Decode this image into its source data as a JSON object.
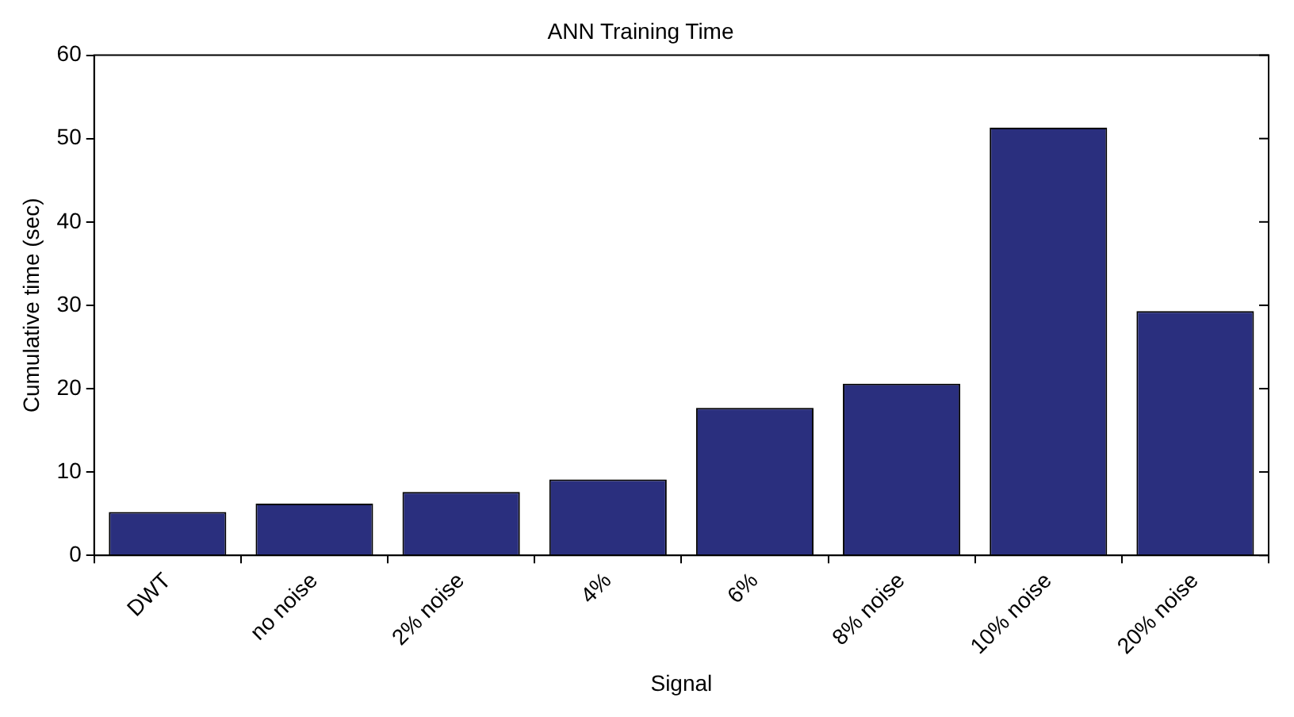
{
  "chart_data": {
    "type": "bar",
    "title": "ANN Training Time",
    "xlabel": "Signal",
    "ylabel": "Cumulative time (sec)",
    "categories": [
      "DWT",
      "no noise",
      "2% noise",
      "4%",
      "6%",
      "8% noise",
      "10% noise",
      "20% noise"
    ],
    "values": [
      5.2,
      6.2,
      7.6,
      9.1,
      17.7,
      20.6,
      51.3,
      29.3
    ],
    "color": "#2a2f7e",
    "ylim": [
      0,
      60
    ],
    "yticks": [
      0,
      10,
      20,
      30,
      40,
      50,
      60
    ],
    "grid": false,
    "legend": false
  }
}
